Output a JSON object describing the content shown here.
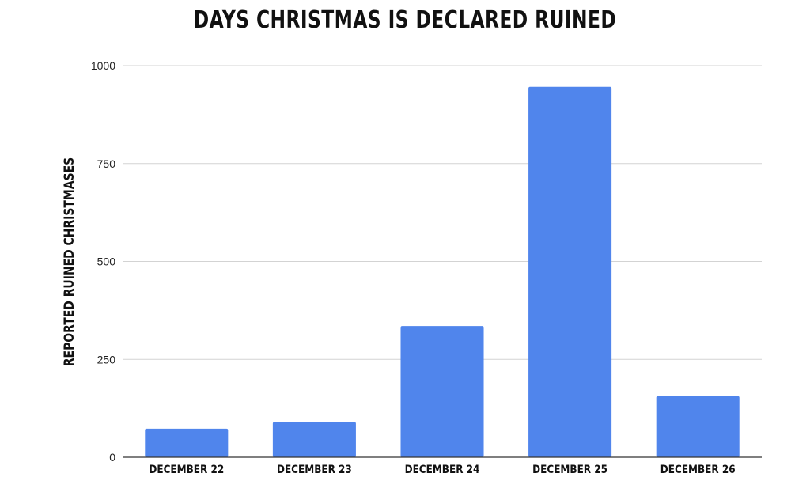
{
  "chart_data": {
    "type": "bar",
    "title": "DAYS CHRISTMAS IS DECLARED RUINED",
    "xlabel": "",
    "ylabel": "REPORTED RUINED CHRISTMASES",
    "categories": [
      "DECEMBER 22",
      "DECEMBER 23",
      "DECEMBER 24",
      "DECEMBER 25",
      "DECEMBER 26"
    ],
    "values": [
      73,
      90,
      335,
      946,
      156
    ],
    "ylim": [
      0,
      1000
    ],
    "yticks": [
      0,
      250,
      500,
      750,
      1000
    ],
    "grid": true,
    "legend": "none",
    "bar_color": "#5085EC",
    "grid_color": "#D3D3D3",
    "axis_color": "#333333"
  }
}
